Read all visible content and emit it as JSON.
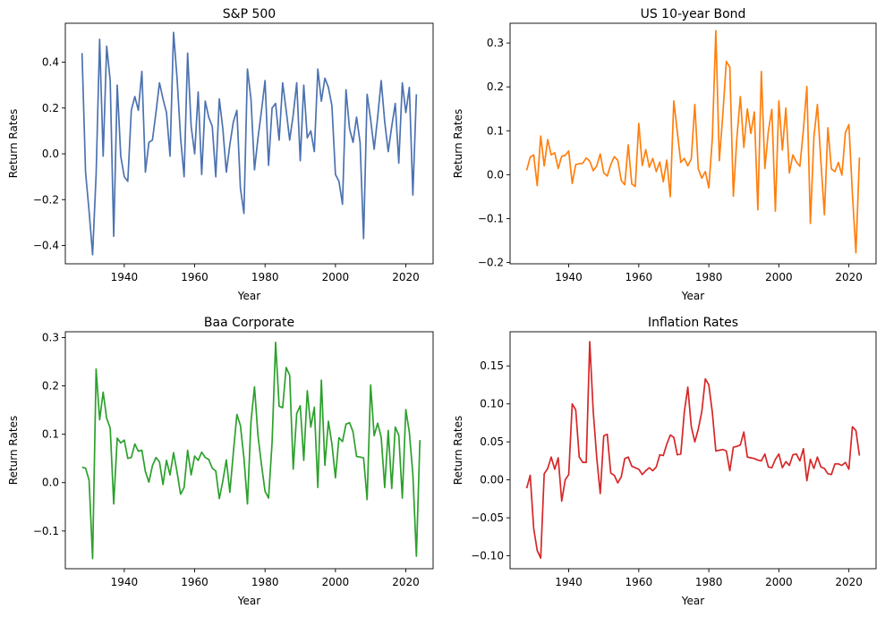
{
  "chart_data": [
    {
      "type": "line",
      "title": "S&P 500",
      "xlabel": "Year",
      "ylabel": "Return Rates",
      "color": "#4c72b0",
      "xlim": [
        1923.25,
        2027.75
      ],
      "ylim": [
        -0.48,
        0.57
      ],
      "xticks": [
        1940,
        1960,
        1980,
        2000,
        2020
      ],
      "yticks": [
        -0.4,
        -0.2,
        0.0,
        0.2,
        0.4
      ],
      "ytick_labels": [
        "−0.4",
        "−0.2",
        "0.0",
        "0.2",
        "0.4"
      ],
      "x_start": 1928,
      "values": [
        0.44,
        -0.08,
        -0.25,
        -0.44,
        -0.09,
        0.5,
        -0.01,
        0.47,
        0.32,
        -0.36,
        0.3,
        -0.01,
        -0.1,
        -0.12,
        0.19,
        0.25,
        0.19,
        0.36,
        -0.08,
        0.05,
        0.06,
        0.18,
        0.31,
        0.24,
        0.18,
        -0.01,
        0.53,
        0.33,
        0.07,
        -0.1,
        0.44,
        0.12,
        0.0,
        0.27,
        -0.09,
        0.23,
        0.16,
        0.12,
        -0.1,
        0.24,
        0.11,
        -0.08,
        0.04,
        0.14,
        0.19,
        -0.15,
        -0.26,
        0.37,
        0.24,
        -0.07,
        0.07,
        0.19,
        0.32,
        -0.05,
        0.2,
        0.22,
        0.06,
        0.31,
        0.19,
        0.06,
        0.17,
        0.31,
        -0.03,
        0.3,
        0.07,
        0.1,
        0.01,
        0.37,
        0.23,
        0.33,
        0.29,
        0.21,
        -0.09,
        -0.12,
        -0.22,
        0.28,
        0.11,
        0.05,
        0.16,
        0.05,
        -0.37,
        0.26,
        0.15,
        0.02,
        0.16,
        0.32,
        0.14,
        0.01,
        0.12,
        0.22,
        -0.04,
        0.31,
        0.18,
        0.29,
        -0.18,
        0.26
      ]
    },
    {
      "type": "line",
      "title": "US 10-year Bond",
      "xlabel": "Year",
      "ylabel": "Return Rates",
      "color": "#ff7f0e",
      "xlim": [
        1923.25,
        2027.75
      ],
      "ylim": [
        -0.203,
        0.345
      ],
      "xticks": [
        1940,
        1960,
        1980,
        2000,
        2020
      ],
      "yticks": [
        -0.2,
        -0.1,
        0.0,
        0.1,
        0.2,
        0.3
      ],
      "ytick_labels": [
        "−0.2",
        "−0.1",
        "0.0",
        "0.1",
        "0.2",
        "0.3"
      ],
      "x_start": 1928,
      "values": [
        0.01,
        0.04,
        0.045,
        -0.025,
        0.088,
        0.02,
        0.08,
        0.045,
        0.05,
        0.014,
        0.042,
        0.044,
        0.054,
        -0.02,
        0.023,
        0.025,
        0.026,
        0.038,
        0.031,
        0.009,
        0.02,
        0.047,
        0.004,
        -0.003,
        0.023,
        0.041,
        0.033,
        -0.013,
        -0.023,
        0.068,
        -0.021,
        -0.027,
        0.117,
        0.021,
        0.057,
        0.017,
        0.037,
        0.007,
        0.029,
        -0.016,
        0.033,
        -0.05,
        0.168,
        0.098,
        0.028,
        0.037,
        0.02,
        0.036,
        0.16,
        0.013,
        -0.008,
        0.007,
        -0.03,
        0.082,
        0.328,
        0.032,
        0.137,
        0.258,
        0.245,
        -0.049,
        0.082,
        0.178,
        0.062,
        0.15,
        0.094,
        0.143,
        -0.08,
        0.235,
        0.014,
        0.099,
        0.149,
        -0.083,
        0.168,
        0.056,
        0.152,
        0.004,
        0.045,
        0.029,
        0.019,
        0.102,
        0.201,
        -0.111,
        0.085,
        0.16,
        0.03,
        -0.091,
        0.107,
        0.013,
        0.007,
        0.028,
        -0.001,
        0.096,
        0.114,
        -0.044,
        -0.178,
        0.039
      ]
    },
    {
      "type": "line",
      "title": "Baa Corporate",
      "xlabel": "Year",
      "ylabel": "Return Rates",
      "color": "#2ca02c",
      "xlim": [
        1923.25,
        2027.75
      ],
      "ylim": [
        -0.178,
        0.312
      ],
      "xticks": [
        1940,
        1960,
        1980,
        2000,
        2020
      ],
      "yticks": [
        -0.1,
        0.0,
        0.1,
        0.2,
        0.3
      ],
      "ytick_labels": [
        "−0.1",
        "0.0",
        "0.1",
        "0.2",
        "0.3"
      ],
      "x_start": 1928,
      "values": [
        0.032,
        0.03,
        0.005,
        -0.157,
        0.235,
        0.13,
        0.187,
        0.133,
        0.113,
        -0.044,
        0.092,
        0.082,
        0.088,
        0.05,
        0.052,
        0.08,
        0.065,
        0.067,
        0.023,
        0.001,
        0.035,
        0.052,
        0.043,
        -0.004,
        0.046,
        0.016,
        0.062,
        0.022,
        -0.024,
        -0.01,
        0.067,
        0.016,
        0.055,
        0.046,
        0.063,
        0.052,
        0.048,
        0.03,
        0.024,
        -0.033,
        0.003,
        0.047,
        -0.02,
        0.063,
        0.141,
        0.118,
        0.051,
        -0.044,
        0.126,
        0.198,
        0.097,
        0.036,
        -0.018,
        -0.032,
        0.083,
        0.29,
        0.158,
        0.155,
        0.238,
        0.222,
        0.028,
        0.143,
        0.159,
        0.046,
        0.19,
        0.115,
        0.156,
        -0.01,
        0.212,
        0.036,
        0.127,
        0.08,
        0.01,
        0.093,
        0.085,
        0.121,
        0.124,
        0.105,
        0.054,
        0.053,
        0.051,
        -0.035,
        0.202,
        0.097,
        0.123,
        0.094,
        -0.01,
        0.108,
        -0.012,
        0.115,
        0.098,
        -0.032,
        0.151,
        0.104,
        0.017,
        -0.152,
        0.088
      ]
    },
    {
      "type": "line",
      "title": "Inflation Rates",
      "xlabel": "Year",
      "ylabel": "Return Rates",
      "color": "#d62728",
      "xlim": [
        1923.25,
        2027.75
      ],
      "ylim": [
        -0.117,
        0.195
      ],
      "xticks": [
        1940,
        1960,
        1980,
        2000,
        2020
      ],
      "yticks": [
        -0.1,
        -0.05,
        0.0,
        0.05,
        0.1,
        0.15
      ],
      "ytick_labels": [
        "−0.10",
        "−0.05",
        "0.00",
        "0.05",
        "0.10",
        "0.15"
      ],
      "x_start": 1928,
      "values": [
        -0.011,
        0.006,
        -0.064,
        -0.093,
        -0.103,
        0.008,
        0.015,
        0.03,
        0.014,
        0.029,
        -0.028,
        0.0,
        0.007,
        0.1,
        0.092,
        0.03,
        0.023,
        0.023,
        0.182,
        0.09,
        0.029,
        -0.018,
        0.058,
        0.06,
        0.009,
        0.006,
        -0.004,
        0.004,
        0.028,
        0.03,
        0.018,
        0.016,
        0.014,
        0.007,
        0.012,
        0.016,
        0.012,
        0.017,
        0.033,
        0.032,
        0.047,
        0.059,
        0.056,
        0.033,
        0.034,
        0.089,
        0.122,
        0.07,
        0.05,
        0.067,
        0.09,
        0.133,
        0.125,
        0.089,
        0.038,
        0.039,
        0.04,
        0.038,
        0.012,
        0.043,
        0.044,
        0.046,
        0.063,
        0.03,
        0.029,
        0.028,
        0.026,
        0.025,
        0.034,
        0.017,
        0.016,
        0.027,
        0.034,
        0.016,
        0.024,
        0.019,
        0.033,
        0.034,
        0.025,
        0.041,
        -0.001,
        0.027,
        0.015,
        0.03,
        0.017,
        0.015,
        0.008,
        0.007,
        0.021,
        0.021,
        0.019,
        0.023,
        0.014,
        0.07,
        0.065,
        0.032
      ]
    }
  ]
}
